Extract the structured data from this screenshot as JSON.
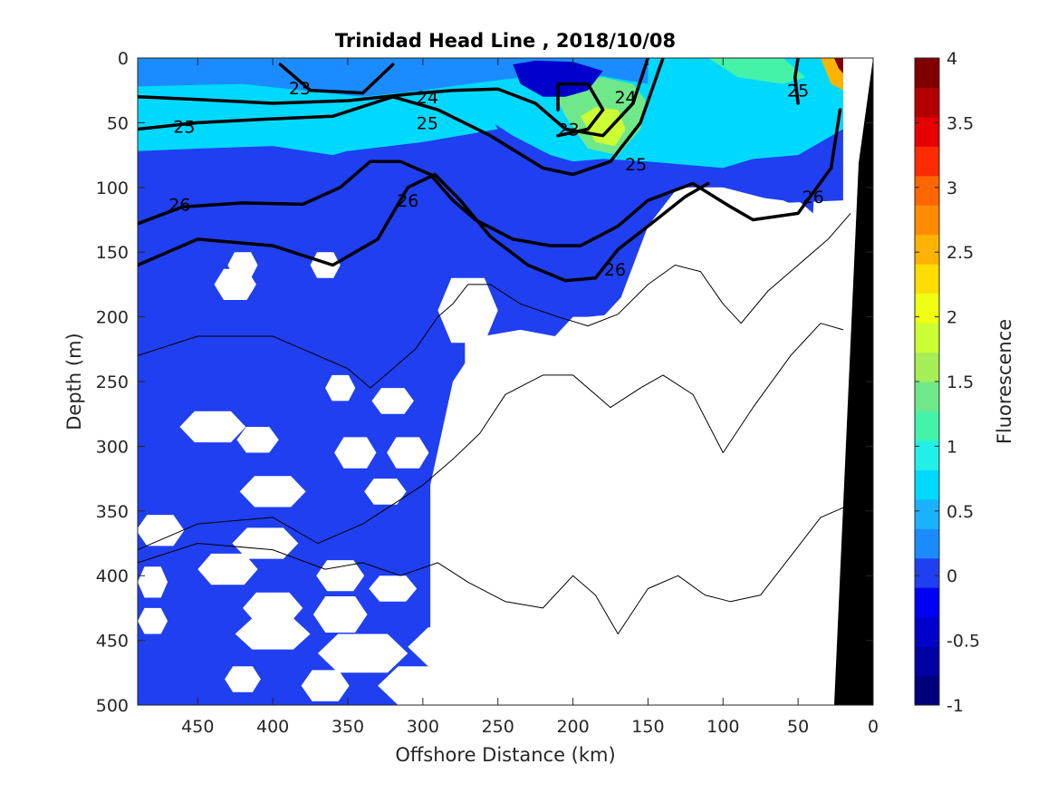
{
  "chart_data": {
    "type": "heatmap",
    "title": "Trinidad Head Line , 2018/10/08",
    "xlabel": "Offshore Distance (km)",
    "ylabel": "Depth (m)",
    "colorbar_label": "Fluorescence",
    "xlim": [
      490,
      0
    ],
    "ylim": [
      0,
      500
    ],
    "x_reversed": true,
    "y_reversed": true,
    "clim": [
      -1,
      4
    ],
    "x_ticks": [
      450,
      400,
      350,
      300,
      250,
      200,
      150,
      100,
      50,
      0
    ],
    "y_ticks": [
      0,
      50,
      100,
      150,
      200,
      250,
      300,
      350,
      400,
      450,
      500
    ],
    "colorbar_ticks": [
      "-1",
      "-0.5",
      "0",
      "0.5",
      "1",
      "1.5",
      "2",
      "2.5",
      "3",
      "3.5",
      "4"
    ],
    "colormap_levels": [
      "#00007a",
      "#0000a3",
      "#0000cc",
      "#0000f5",
      "#1f3ff0",
      "#1a8cff",
      "#1ab2ff",
      "#00d9ff",
      "#22f0e6",
      "#44f2a8",
      "#6fe88a",
      "#a5ee55",
      "#ccff33",
      "#eeff11",
      "#ffdd00",
      "#ffb300",
      "#ff8c00",
      "#ff6600",
      "#ff2a00",
      "#e60000",
      "#b30000",
      "#800000"
    ],
    "surface_layer_fluorescence": [
      {
        "x": 460,
        "value": 0.5
      },
      {
        "x": 400,
        "value": 0.5
      },
      {
        "x": 350,
        "value": 0.7
      },
      {
        "x": 300,
        "value": 0.6
      },
      {
        "x": 250,
        "value": 0.5
      },
      {
        "x": 215,
        "value": 0.1
      },
      {
        "x": 190,
        "value": 1.8
      },
      {
        "x": 150,
        "value": 0.7
      },
      {
        "x": 60,
        "value": 1.1
      },
      {
        "x": 22,
        "value": 4.0
      }
    ],
    "density_contours": [
      {
        "level": "23",
        "points": [
          [
            395,
            5
          ],
          [
            375,
            25
          ],
          [
            340,
            27
          ],
          [
            320,
            5
          ]
        ]
      },
      {
        "level": "23",
        "points": [
          [
            210,
            40
          ],
          [
            210,
            20
          ],
          [
            190,
            20
          ],
          [
            180,
            40
          ],
          [
            190,
            55
          ],
          [
            210,
            60
          ]
        ]
      },
      {
        "level": "24",
        "points": [
          [
            490,
            30
          ],
          [
            450,
            32
          ],
          [
            400,
            35
          ],
          [
            350,
            33
          ],
          [
            310,
            28
          ],
          [
            280,
            25
          ],
          [
            250,
            24
          ],
          [
            225,
            35
          ],
          [
            205,
            55
          ],
          [
            180,
            60
          ],
          [
            160,
            35
          ],
          [
            150,
            0
          ]
        ]
      },
      {
        "level": "25",
        "points": [
          [
            490,
            55
          ],
          [
            450,
            50
          ],
          [
            400,
            47
          ],
          [
            360,
            45
          ],
          [
            320,
            30
          ],
          [
            290,
            40
          ],
          [
            255,
            60
          ],
          [
            220,
            85
          ],
          [
            200,
            90
          ],
          [
            175,
            80
          ],
          [
            155,
            50
          ],
          [
            140,
            0
          ]
        ]
      },
      {
        "level": "25",
        "points": [
          [
            50,
            35
          ],
          [
            52,
            15
          ],
          [
            50,
            0
          ]
        ]
      },
      {
        "level": "26",
        "points": [
          [
            490,
            128
          ],
          [
            460,
            115
          ],
          [
            420,
            112
          ],
          [
            380,
            113
          ],
          [
            355,
            100
          ],
          [
            335,
            80
          ],
          [
            315,
            80
          ],
          [
            295,
            90
          ],
          [
            280,
            110
          ],
          [
            265,
            125
          ],
          [
            240,
            140
          ],
          [
            215,
            145
          ],
          [
            195,
            145
          ],
          [
            170,
            130
          ],
          [
            150,
            110
          ],
          [
            120,
            97
          ],
          [
            95,
            115
          ],
          [
            80,
            125
          ],
          [
            50,
            120
          ],
          [
            28,
            85
          ],
          [
            22,
            40
          ]
        ]
      },
      {
        "level": "26",
        "points": [
          [
            490,
            160
          ],
          [
            450,
            140
          ],
          [
            400,
            145
          ],
          [
            360,
            160
          ],
          [
            330,
            140
          ],
          [
            310,
            100
          ],
          [
            292,
            90
          ],
          [
            275,
            110
          ],
          [
            255,
            138
          ],
          [
            230,
            160
          ],
          [
            205,
            172
          ],
          [
            185,
            170
          ],
          [
            170,
            148
          ],
          [
            150,
            130
          ],
          [
            125,
            107
          ],
          [
            110,
            97
          ]
        ]
      }
    ],
    "thin_isopycnals": [
      {
        "points": [
          [
            490,
            230
          ],
          [
            450,
            215
          ],
          [
            400,
            215
          ],
          [
            350,
            240
          ],
          [
            335,
            255
          ],
          [
            305,
            225
          ],
          [
            290,
            200
          ],
          [
            280,
            190
          ],
          [
            270,
            175
          ],
          [
            255,
            175
          ],
          [
            235,
            190
          ],
          [
            210,
            200
          ],
          [
            190,
            207
          ],
          [
            170,
            198
          ],
          [
            150,
            175
          ],
          [
            132,
            160
          ],
          [
            115,
            165
          ],
          [
            100,
            190
          ],
          [
            88,
            205
          ],
          [
            70,
            180
          ],
          [
            50,
            160
          ],
          [
            30,
            140
          ],
          [
            15,
            120
          ]
        ]
      },
      {
        "points": [
          [
            490,
            380
          ],
          [
            450,
            360
          ],
          [
            400,
            355
          ],
          [
            370,
            375
          ],
          [
            340,
            360
          ],
          [
            320,
            345
          ],
          [
            300,
            330
          ],
          [
            280,
            310
          ],
          [
            262,
            290
          ],
          [
            245,
            260
          ],
          [
            220,
            245
          ],
          [
            200,
            245
          ],
          [
            175,
            270
          ],
          [
            155,
            255
          ],
          [
            140,
            245
          ],
          [
            120,
            260
          ],
          [
            100,
            305
          ],
          [
            80,
            270
          ],
          [
            55,
            230
          ],
          [
            35,
            205
          ],
          [
            20,
            210
          ]
        ]
      },
      {
        "points": [
          [
            490,
            390
          ],
          [
            450,
            375
          ],
          [
            400,
            380
          ],
          [
            365,
            395
          ],
          [
            340,
            390
          ],
          [
            315,
            400
          ],
          [
            290,
            390
          ],
          [
            270,
            405
          ],
          [
            245,
            420
          ],
          [
            220,
            425
          ],
          [
            200,
            400
          ],
          [
            185,
            415
          ],
          [
            170,
            445
          ],
          [
            150,
            410
          ],
          [
            130,
            400
          ],
          [
            112,
            415
          ],
          [
            95,
            420
          ],
          [
            75,
            415
          ],
          [
            55,
            385
          ],
          [
            35,
            355
          ],
          [
            15,
            345
          ]
        ]
      }
    ],
    "contour_labels": [
      {
        "text": "23",
        "x": 382,
        "y": 23
      },
      {
        "text": "23",
        "x": 203,
        "y": 55
      },
      {
        "text": "24",
        "x": 297,
        "y": 30
      },
      {
        "text": "24",
        "x": 165,
        "y": 30
      },
      {
        "text": "25",
        "x": 459,
        "y": 53
      },
      {
        "text": "25",
        "x": 297,
        "y": 50
      },
      {
        "text": "25",
        "x": 158,
        "y": 82
      },
      {
        "text": "25",
        "x": 50,
        "y": 25
      },
      {
        "text": "26",
        "x": 462,
        "y": 113
      },
      {
        "text": "26",
        "x": 310,
        "y": 110
      },
      {
        "text": "26",
        "x": 172,
        "y": 163
      },
      {
        "text": "26",
        "x": 40,
        "y": 107
      }
    ]
  }
}
